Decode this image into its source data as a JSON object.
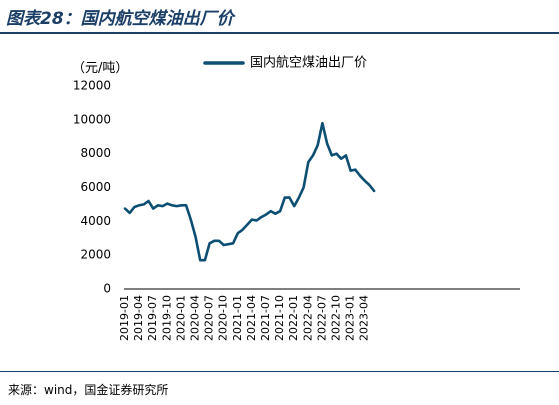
{
  "figure": {
    "title": "图表28：国内航空煤油出厂价",
    "unit": "（元/吨）",
    "source": "来源：wind，国金证券研究所"
  },
  "chart_data": {
    "type": "line",
    "yticks": [
      0,
      2000,
      4000,
      6000,
      8000,
      10000,
      12000
    ],
    "ylim": [
      0,
      12000
    ],
    "legend_position": "top-center",
    "x_tick_labels": [
      "2019-01",
      "2019-04",
      "2019-07",
      "2019-10",
      "2020-01",
      "2020-04",
      "2020-07",
      "2020-10",
      "2021-01",
      "2021-04",
      "2021-07",
      "2021-10",
      "2022-01",
      "2022-04",
      "2022-07",
      "2022-10",
      "2023-01",
      "2023-04"
    ],
    "series": [
      {
        "name": "国内航空煤油出厂价",
        "color": "#0d4e73",
        "x": [
          "2019-01",
          "2019-02",
          "2019-03",
          "2019-04",
          "2019-05",
          "2019-06",
          "2019-07",
          "2019-08",
          "2019-09",
          "2019-10",
          "2019-11",
          "2019-12",
          "2020-01",
          "2020-02",
          "2020-03",
          "2020-04",
          "2020-05",
          "2020-06",
          "2020-07",
          "2020-08",
          "2020-09",
          "2020-10",
          "2020-11",
          "2020-12",
          "2021-01",
          "2021-02",
          "2021-03",
          "2021-04",
          "2021-05",
          "2021-06",
          "2021-07",
          "2021-08",
          "2021-09",
          "2021-10",
          "2021-11",
          "2021-12",
          "2022-01",
          "2022-02",
          "2022-03",
          "2022-04",
          "2022-05",
          "2022-06",
          "2022-07",
          "2022-08",
          "2022-09",
          "2022-10",
          "2022-11",
          "2022-12",
          "2023-01",
          "2023-02",
          "2023-03",
          "2023-04",
          "2023-05",
          "2023-06"
        ],
        "values": [
          4750,
          4500,
          4850,
          4950,
          5000,
          5200,
          4750,
          4950,
          4900,
          5050,
          4950,
          4900,
          4950,
          4950,
          4100,
          3100,
          1700,
          1700,
          2700,
          2850,
          2850,
          2600,
          2650,
          2700,
          3300,
          3500,
          3800,
          4100,
          4050,
          4250,
          4400,
          4600,
          4450,
          4600,
          5400,
          5400,
          4900,
          5400,
          6000,
          7500,
          7900,
          8500,
          9800,
          8600,
          7900,
          8000,
          7700,
          7900,
          7000,
          7050,
          6700,
          6400,
          6150,
          5800
        ]
      }
    ]
  }
}
